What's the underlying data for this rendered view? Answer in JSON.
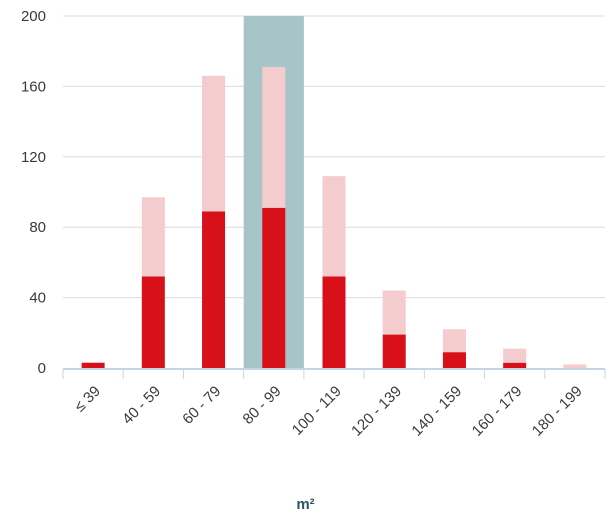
{
  "chart_data": {
    "type": "bar",
    "stacked": true,
    "categories": [
      "≤ 39",
      "40 - 59",
      "60 - 79",
      "80 - 99",
      "100 - 119",
      "120 - 139",
      "140 - 159",
      "160 - 179",
      "180 - 199"
    ],
    "series": [
      {
        "values": [
          3,
          52,
          89,
          91,
          52,
          19,
          9,
          3,
          0
        ],
        "color": "#d7101a"
      },
      {
        "values": [
          0,
          45,
          77,
          80,
          57,
          25,
          13,
          8,
          2
        ],
        "color": "#f5cccd"
      }
    ],
    "highlight_category": "80 - 99",
    "highlight_color": "#a7c5c9",
    "yticks": [
      0,
      40,
      80,
      120,
      160,
      200
    ],
    "ylim": [
      0,
      200
    ],
    "xlabel": "m²",
    "ylabel": "",
    "grid": "horizontal",
    "legend": "none"
  }
}
